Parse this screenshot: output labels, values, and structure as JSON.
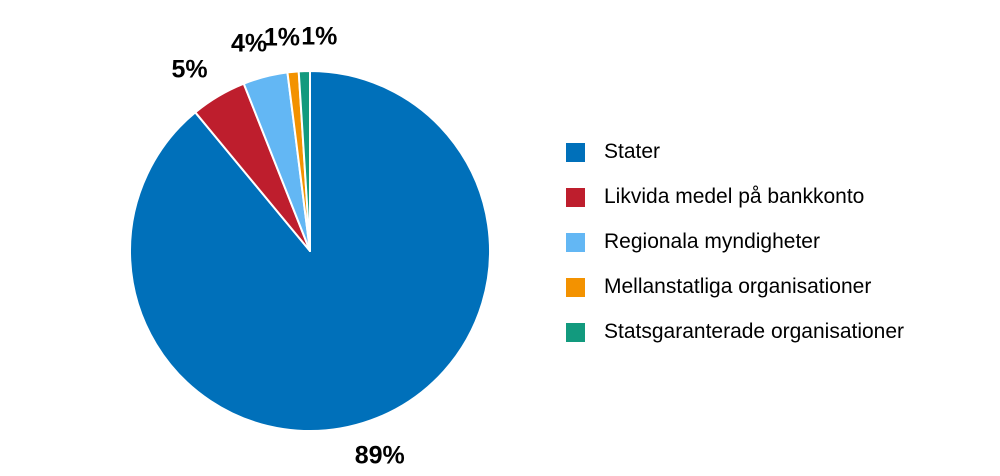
{
  "chart_data": {
    "type": "pie",
    "title": "",
    "slices": [
      {
        "name": "Stater",
        "value": 89,
        "label": "89%",
        "color": "#0070BA"
      },
      {
        "name": "Likvida medel på bankkonto",
        "value": 5,
        "label": "5%",
        "color": "#BE1E2D"
      },
      {
        "name": "Regionala myndigheter",
        "value": 4,
        "label": "4%",
        "color": "#63B7F4"
      },
      {
        "name": "Mellanstatliga organisationer",
        "value": 1,
        "label": "1%",
        "color": "#F39200"
      },
      {
        "name": "Statsgaranterade organisationer",
        "value": 1,
        "label": "1%",
        "color": "#129A7E"
      }
    ],
    "legend_position": "right"
  }
}
